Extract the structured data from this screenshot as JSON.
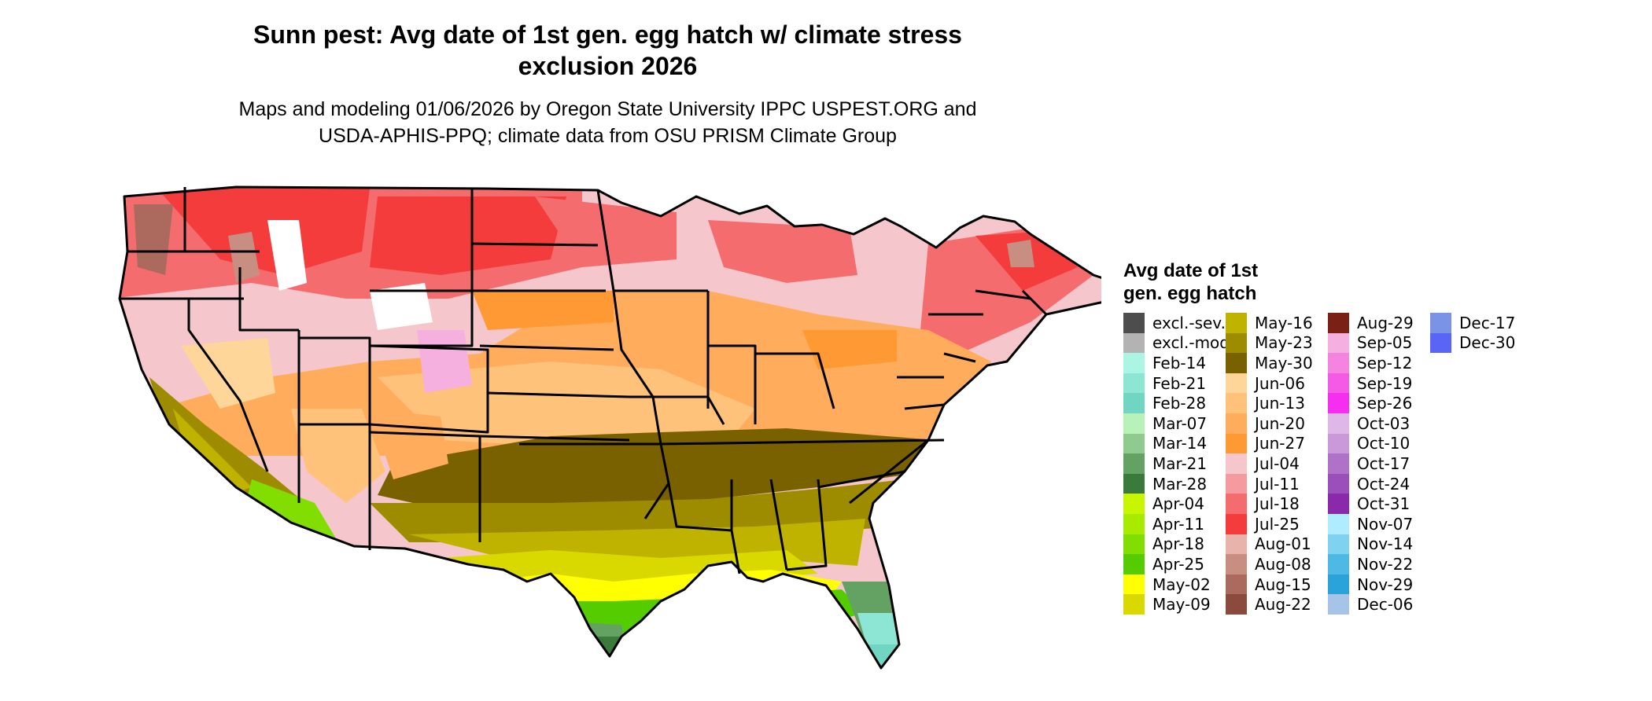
{
  "title_lines": [
    "Sunn pest: Avg date of 1st gen. egg hatch w/ climate stress",
    "exclusion 2026"
  ],
  "subtitle_lines": [
    "Maps and modeling 01/06/2026 by Oregon State University IPPC USPEST.ORG and",
    "USDA-APHIS-PPQ; climate data from OSU PRISM Climate Group"
  ],
  "legend": {
    "title_lines": [
      "Avg date of 1st",
      "gen. egg hatch"
    ],
    "columns": [
      [
        {
          "label": "excl.-sev.",
          "color": "#4d4d4d"
        },
        {
          "label": "excl.-mod.",
          "color": "#b3b3b3"
        },
        {
          "label": "Feb-14",
          "color": "#aaf5e3"
        },
        {
          "label": "Feb-21",
          "color": "#8de5d3"
        },
        {
          "label": "Feb-28",
          "color": "#70d6c3"
        },
        {
          "label": "Mar-07",
          "color": "#b8f2b8"
        },
        {
          "label": "Mar-14",
          "color": "#8fcb8f"
        },
        {
          "label": "Mar-21",
          "color": "#63a263"
        },
        {
          "label": "Mar-28",
          "color": "#3a7a3a"
        },
        {
          "label": "Apr-04",
          "color": "#c8f500"
        },
        {
          "label": "Apr-11",
          "color": "#a8eb00"
        },
        {
          "label": "Apr-18",
          "color": "#82de00"
        },
        {
          "label": "Apr-25",
          "color": "#55cc00"
        },
        {
          "label": "May-02",
          "color": "#ffff00"
        },
        {
          "label": "May-09",
          "color": "#d9d900"
        }
      ],
      [
        {
          "label": "May-16",
          "color": "#bfb300"
        },
        {
          "label": "May-23",
          "color": "#9e8c00"
        },
        {
          "label": "May-30",
          "color": "#7a6100"
        },
        {
          "label": "Jun-06",
          "color": "#ffd699"
        },
        {
          "label": "Jun-13",
          "color": "#ffc27a"
        },
        {
          "label": "Jun-20",
          "color": "#ffad5c"
        },
        {
          "label": "Jun-27",
          "color": "#ff9933"
        },
        {
          "label": "Jul-04",
          "color": "#f5c6cb"
        },
        {
          "label": "Jul-11",
          "color": "#f59a9e"
        },
        {
          "label": "Jul-18",
          "color": "#f56c6e"
        },
        {
          "label": "Jul-25",
          "color": "#f53c3c"
        },
        {
          "label": "Aug-01",
          "color": "#e8b3ab"
        },
        {
          "label": "Aug-08",
          "color": "#c98e82"
        },
        {
          "label": "Aug-15",
          "color": "#ab6a5d"
        },
        {
          "label": "Aug-22",
          "color": "#8c4a3c"
        }
      ],
      [
        {
          "label": "Aug-29",
          "color": "#7a2014"
        },
        {
          "label": "Sep-05",
          "color": "#f5b0e0"
        },
        {
          "label": "Sep-12",
          "color": "#f584e0"
        },
        {
          "label": "Sep-19",
          "color": "#f55ae6"
        },
        {
          "label": "Sep-26",
          "color": "#f52ef0"
        },
        {
          "label": "Oct-03",
          "color": "#e0b8e8"
        },
        {
          "label": "Oct-10",
          "color": "#c999d9"
        },
        {
          "label": "Oct-17",
          "color": "#b072c9"
        },
        {
          "label": "Oct-24",
          "color": "#9b4fba"
        },
        {
          "label": "Oct-31",
          "color": "#8a2aab"
        },
        {
          "label": "Nov-07",
          "color": "#b0ecff"
        },
        {
          "label": "Nov-14",
          "color": "#7fd3f0"
        },
        {
          "label": "Nov-22",
          "color": "#4fb9e6"
        },
        {
          "label": "Nov-29",
          "color": "#2aa3db"
        },
        {
          "label": "Dec-06",
          "color": "#a6c4e8"
        }
      ],
      [
        {
          "label": "Dec-17",
          "color": "#7b93e6"
        },
        {
          "label": "Dec-30",
          "color": "#5a64f5"
        }
      ]
    ]
  }
}
